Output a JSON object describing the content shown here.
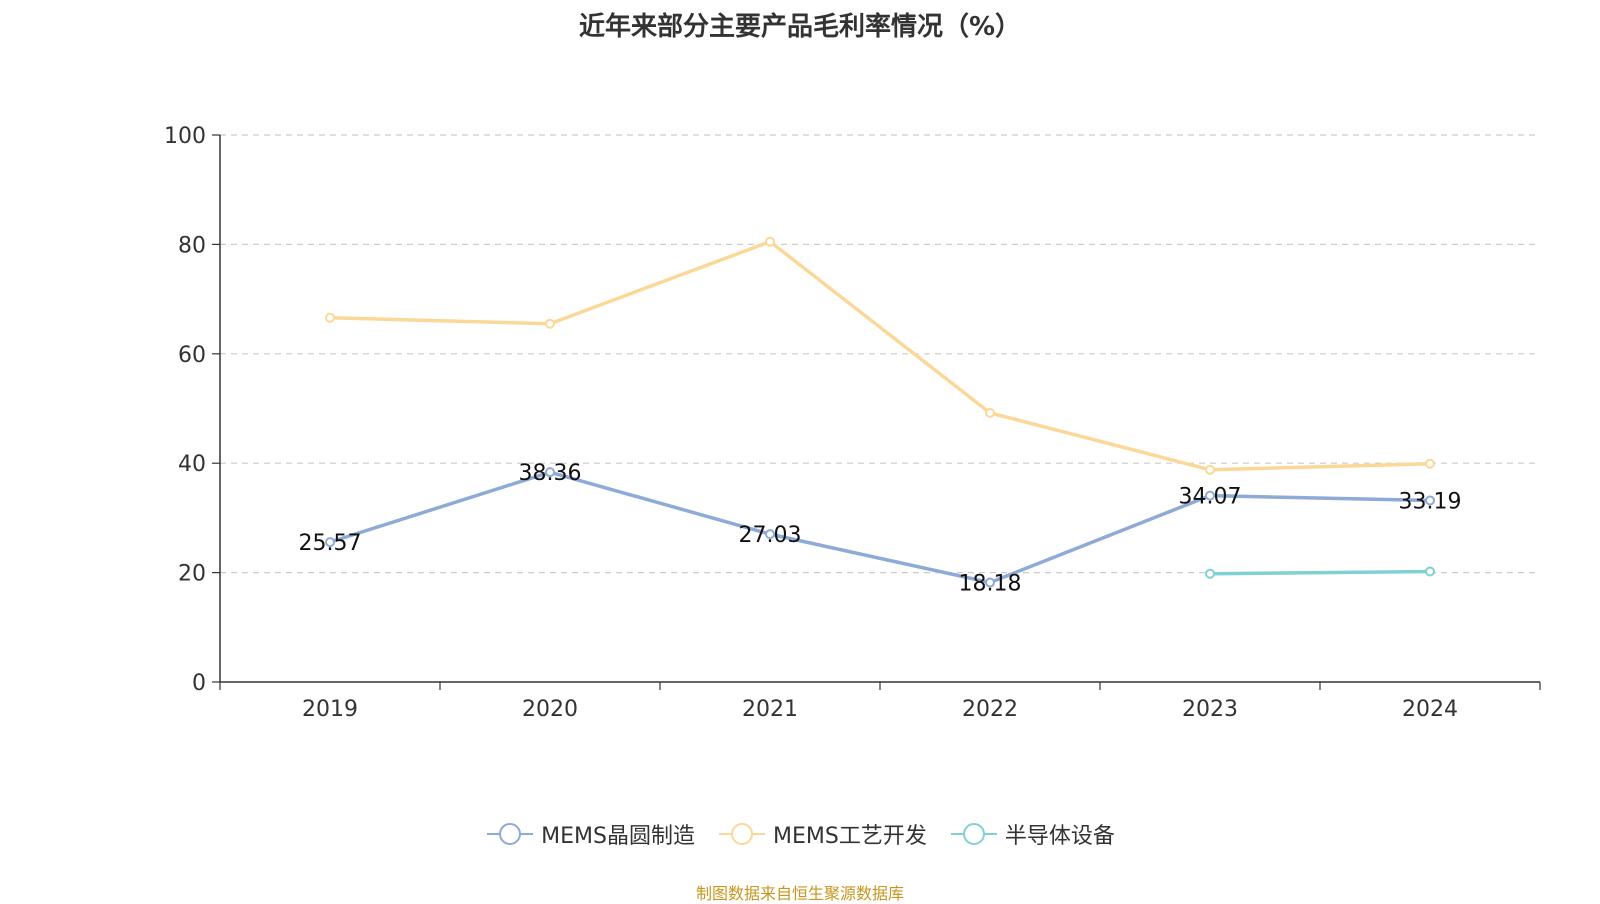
{
  "chart_data": {
    "type": "line",
    "title": "近年来部分主要产品毛利率情况（%）",
    "categories": [
      "2019",
      "2020",
      "2021",
      "2022",
      "2023",
      "2024"
    ],
    "ylim": [
      0,
      100
    ],
    "yticks": [
      0,
      20,
      40,
      60,
      80,
      100
    ],
    "grid": true,
    "legend_position": "bottom",
    "series": [
      {
        "name": "MEMS晶圆制造",
        "color": "#8eaad6",
        "values": [
          25.57,
          38.36,
          27.03,
          18.18,
          34.07,
          33.19
        ],
        "labels": [
          "25.57",
          "38.36",
          "27.03",
          "18.18",
          "34.07",
          "33.19"
        ]
      },
      {
        "name": "MEMS工艺开发",
        "color": "#fcd898",
        "values": [
          66.6,
          65.5,
          80.5,
          49.2,
          38.8,
          39.9
        ]
      },
      {
        "name": "半导体设备",
        "color": "#80d1d3",
        "values": [
          null,
          null,
          null,
          null,
          19.8,
          20.2
        ]
      }
    ]
  },
  "source_note": "制图数据来自恒生聚源数据库"
}
